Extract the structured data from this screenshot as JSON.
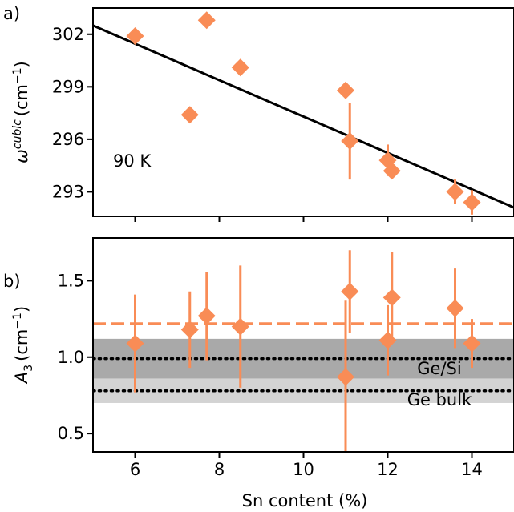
{
  "colors": {
    "marker": "#f98c56",
    "fit_line": "#000000",
    "band_dark": "#a9a9a9",
    "band_light": "#d3d3d3",
    "text": "#000000"
  },
  "chart_data": [
    {
      "type": "scatter",
      "panel_label": "a)",
      "ylabel": {
        "symbol": "ω",
        "superscript": "cubic",
        "unit_pre": "(cm",
        "unit_exp": "−1",
        "unit_post": ")"
      },
      "annotation": "90 K",
      "xlim": [
        5,
        15
      ],
      "ylim": [
        291.6,
        303.5
      ],
      "yticks": [
        293,
        296,
        299,
        302
      ],
      "ytick_labels": [
        "293",
        "296",
        "299",
        "302"
      ],
      "fit_line": {
        "x": [
          5,
          15
        ],
        "y": [
          302.5,
          292.1
        ]
      },
      "points": [
        {
          "x": 6.0,
          "y": 301.9,
          "yerr": 0.0
        },
        {
          "x": 7.3,
          "y": 297.4,
          "yerr": 0.0
        },
        {
          "x": 7.7,
          "y": 302.8,
          "yerr": 0.0
        },
        {
          "x": 8.5,
          "y": 300.1,
          "yerr": 0.0
        },
        {
          "x": 11.0,
          "y": 298.8,
          "yerr": 0.0
        },
        {
          "x": 11.1,
          "y": 295.9,
          "yerr": 2.2
        },
        {
          "x": 12.0,
          "y": 294.8,
          "yerr": 0.9
        },
        {
          "x": 12.1,
          "y": 294.2,
          "yerr": 0.0
        },
        {
          "x": 13.6,
          "y": 293.0,
          "yerr": 0.7
        },
        {
          "x": 14.0,
          "y": 292.4,
          "yerr": 0.7
        }
      ]
    },
    {
      "type": "scatter",
      "panel_label": "b)",
      "ylabel": {
        "symbol": "A",
        "subscript": "3",
        "unit_pre": "(cm",
        "unit_exp": "−1",
        "unit_post": ")"
      },
      "xlabel": "Sn content (%)",
      "xlim": [
        5,
        15
      ],
      "xticks": [
        6,
        8,
        10,
        12,
        14
      ],
      "xtick_labels": [
        "6",
        "8",
        "10",
        "12",
        "14"
      ],
      "ylim": [
        0.38,
        1.78
      ],
      "yticks": [
        0.5,
        1.0,
        1.5
      ],
      "ytick_labels": [
        "0.5",
        "1.0",
        "1.5"
      ],
      "mean_line": {
        "y": 1.22,
        "style": "dashed"
      },
      "reference_bands": [
        {
          "label": "Ge/Si",
          "y": 0.99,
          "band": [
            0.86,
            1.12
          ]
        },
        {
          "label": "Ge bulk",
          "y": 0.78,
          "band": [
            0.7,
            0.86
          ]
        }
      ],
      "points": [
        {
          "x": 6.0,
          "y": 1.09,
          "yerr": 0.32
        },
        {
          "x": 7.3,
          "y": 1.18,
          "yerr": 0.25
        },
        {
          "x": 7.7,
          "y": 1.27,
          "yerr": 0.29
        },
        {
          "x": 8.5,
          "y": 1.2,
          "yerr": 0.4
        },
        {
          "x": 11.0,
          "y": 0.87,
          "yerr": 0.5
        },
        {
          "x": 11.1,
          "y": 1.43,
          "yerr": 0.27
        },
        {
          "x": 12.0,
          "y": 1.11,
          "yerr": 0.23
        },
        {
          "x": 12.1,
          "y": 1.39,
          "yerr": 0.3
        },
        {
          "x": 13.6,
          "y": 1.32,
          "yerr": 0.26
        },
        {
          "x": 14.0,
          "y": 1.09,
          "yerr": 0.16
        }
      ]
    }
  ]
}
